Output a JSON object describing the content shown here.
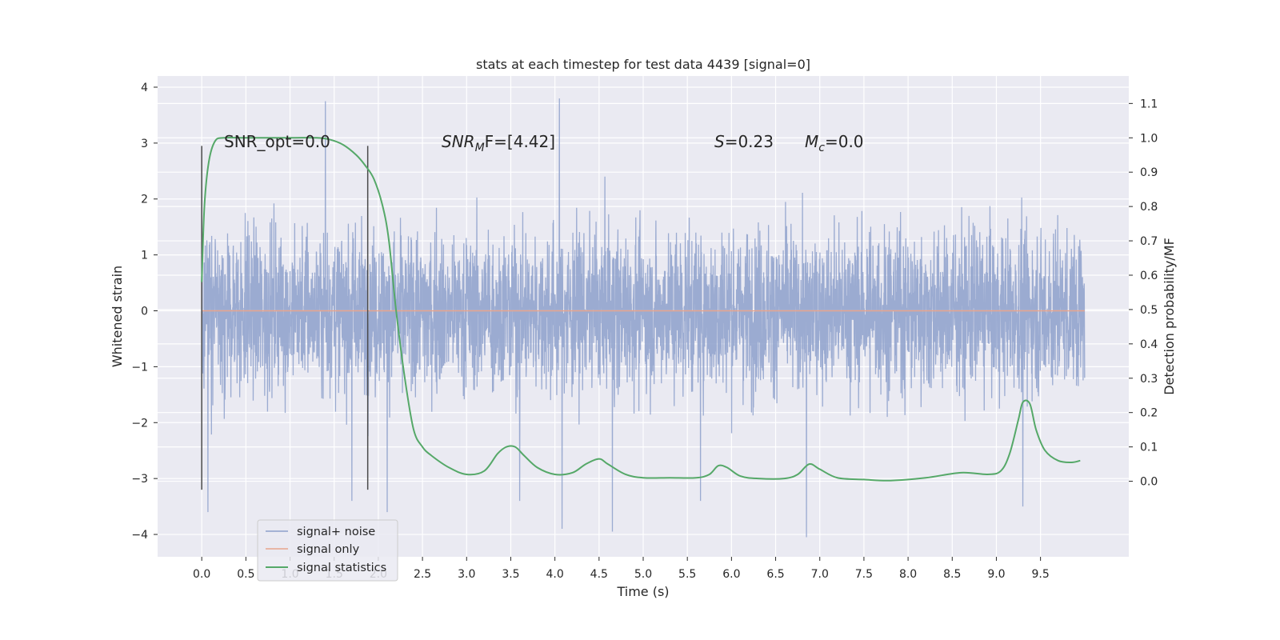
{
  "chart_data": {
    "type": "line",
    "title": "stats at each timestep for test data 4439 [signal=0]",
    "xlabel": "Time (s)",
    "ylabel": "Whitened strain",
    "y2label": "Detection probability/MF",
    "xlim": [
      -0.5,
      10.5
    ],
    "ylim": [
      -4.4,
      4.2
    ],
    "y2lim": [
      -0.22,
      1.18
    ],
    "x_ticks": [
      "0.0",
      "0.5",
      "1.0",
      "1.5",
      "2.0",
      "2.5",
      "3.0",
      "3.5",
      "4.0",
      "4.5",
      "5.0",
      "5.5",
      "6.0",
      "6.5",
      "7.0",
      "7.5",
      "8.0",
      "8.5",
      "9.0",
      "9.5"
    ],
    "y_ticks": [
      "−4",
      "−3",
      "−2",
      "−1",
      "0",
      "1",
      "2",
      "3",
      "4"
    ],
    "y2_ticks": [
      "0.0",
      "0.1",
      "0.2",
      "0.3",
      "0.4",
      "0.5",
      "0.6",
      "0.7",
      "0.8",
      "0.9",
      "1.0",
      "1.1"
    ],
    "grid": true,
    "legend_position": "lower-left",
    "annotations": {
      "snr_opt": "SNR_opt=0.0",
      "snr_mf_main": "SNR",
      "snr_mf_sub": "M",
      "snr_mf_rest": "F=[4.42]",
      "s_main": "S",
      "s_rest": "=0.23",
      "mc_main": "M",
      "mc_sub": "c",
      "mc_rest": "=0.0"
    },
    "markers": [
      {
        "x": 0.0,
        "y": [
          -3.2,
          2.95
        ]
      },
      {
        "x": 1.88,
        "y": [
          -3.2,
          2.95
        ]
      }
    ],
    "series": [
      {
        "name": "signal+ noise",
        "color": "#8da0cb",
        "x_range": [
          0,
          10
        ],
        "envelope": {
          "typical_abs": 1.6,
          "max": 3.8,
          "min": -4.05,
          "peaks": [
            [
              1.4,
              3.75
            ],
            [
              4.05,
              3.8
            ],
            [
              6.85,
              -4.05
            ],
            [
              4.08,
              -3.9
            ],
            [
              4.65,
              -3.95
            ],
            [
              0.07,
              -3.6
            ],
            [
              1.7,
              -3.4
            ],
            [
              2.1,
              -3.6
            ],
            [
              3.6,
              -3.4
            ],
            [
              5.65,
              -3.4
            ],
            [
              9.3,
              -3.5
            ]
          ]
        }
      },
      {
        "name": "signal only",
        "color": "#e8a48c",
        "x": [
          0,
          10
        ],
        "values": [
          0,
          0
        ]
      },
      {
        "name": "signal statistics",
        "color": "#55a868",
        "axis": "right",
        "x": [
          0.0,
          0.03,
          0.08,
          0.15,
          0.25,
          0.5,
          1.0,
          1.3,
          1.45,
          1.6,
          1.75,
          1.85,
          1.95,
          2.05,
          2.12,
          2.2,
          2.3,
          2.4,
          2.5,
          2.6,
          2.8,
          3.0,
          3.2,
          3.35,
          3.45,
          3.55,
          3.65,
          3.8,
          4.0,
          4.2,
          4.35,
          4.5,
          4.6,
          4.8,
          5.0,
          5.3,
          5.6,
          5.75,
          5.85,
          5.95,
          6.1,
          6.3,
          6.6,
          6.75,
          6.88,
          7.0,
          7.2,
          7.5,
          7.8,
          8.2,
          8.6,
          8.9,
          9.05,
          9.15,
          9.25,
          9.3,
          9.38,
          9.45,
          9.55,
          9.7,
          9.85,
          9.95
        ],
        "values": [
          0.58,
          0.8,
          0.93,
          0.99,
          1.0,
          1.0,
          1.0,
          1.0,
          0.995,
          0.98,
          0.95,
          0.92,
          0.88,
          0.8,
          0.7,
          0.5,
          0.3,
          0.15,
          0.1,
          0.075,
          0.04,
          0.02,
          0.03,
          0.08,
          0.1,
          0.1,
          0.075,
          0.04,
          0.02,
          0.025,
          0.05,
          0.065,
          0.05,
          0.02,
          0.01,
          0.01,
          0.01,
          0.02,
          0.045,
          0.04,
          0.015,
          0.008,
          0.008,
          0.02,
          0.05,
          0.035,
          0.01,
          0.005,
          0.002,
          0.01,
          0.025,
          0.02,
          0.03,
          0.08,
          0.18,
          0.23,
          0.225,
          0.15,
          0.09,
          0.06,
          0.055,
          0.06
        ]
      }
    ]
  }
}
